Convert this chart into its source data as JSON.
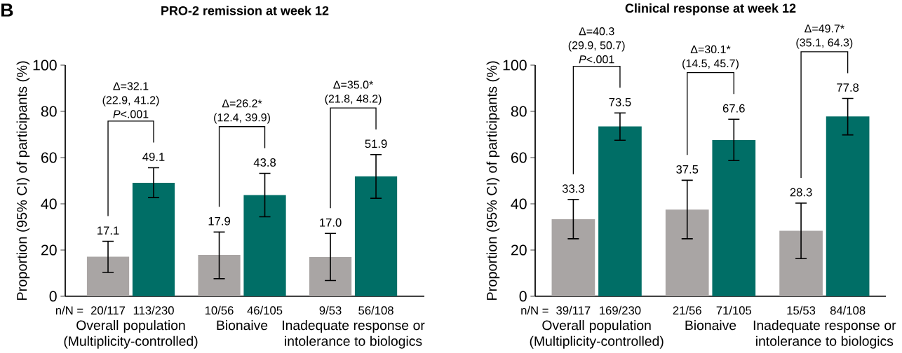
{
  "chart_data": [
    {
      "type": "bar",
      "title": "PRO-2 remission at week 12",
      "ylabel": "Proportion (95% CI) of participants (%)",
      "categories": [
        "Overall population (Multiplicity-controlled)",
        "Bionaive",
        "Inadequate response or intolerance to biologics"
      ],
      "series": [
        {
          "color": "#a9a5a4",
          "values": [
            17.1,
            17.9,
            17.0
          ],
          "value_labels": [
            "17.1",
            "17.9",
            "17.0"
          ],
          "errors": [
            [
              10.3,
              23.8
            ],
            [
              7.6,
              27.8
            ],
            [
              6.8,
              27.2
            ]
          ]
        },
        {
          "color": "#006e66",
          "values": [
            49.1,
            43.8,
            51.9
          ],
          "value_labels": [
            "49.1",
            "43.8",
            "51.9"
          ],
          "errors": [
            [
              42.7,
              55.6
            ],
            [
              34.4,
              53.2
            ],
            [
              42.4,
              61.3
            ]
          ]
        }
      ],
      "ylim": [
        0,
        100
      ],
      "yticks": [
        0,
        20,
        40,
        60,
        80,
        100
      ],
      "annotations": [
        "n/N =",
        "20/117",
        "113/230",
        "10/56",
        "46/105",
        "9/53",
        "56/108",
        "B",
        "Δ=32.1 (22.9, 41.2) *P*<.001",
        "Δ=26.2* (12.4, 39.9)",
        "Δ=35.0* (21.8, 48.2)"
      ]
    },
    {
      "type": "bar",
      "title": "Clinical response at week 12",
      "ylabel": "Proportion (95% CI) of participants (%)",
      "categories": [
        "Overall population (Multiplicity-controlled)",
        "Bionaive",
        "Inadequate response or intolerance to biologics"
      ],
      "series": [
        {
          "color": "#a9a5a4",
          "values": [
            33.3,
            37.5,
            28.3
          ],
          "value_labels": [
            "33.3",
            "37.5",
            "28.3"
          ],
          "errors": [
            [
              24.9,
              41.9
            ],
            [
              24.9,
              50.2
            ],
            [
              16.3,
              40.3
            ]
          ]
        },
        {
          "color": "#006e66",
          "values": [
            73.5,
            67.6,
            77.8
          ],
          "value_labels": [
            "73.5",
            "67.6",
            "77.8"
          ],
          "errors": [
            [
              67.5,
              79.3
            ],
            [
              58.7,
              76.6
            ],
            [
              69.8,
              85.6
            ]
          ]
        }
      ],
      "ylim": [
        0,
        100
      ],
      "yticks": [
        0,
        20,
        40,
        60,
        80,
        100
      ],
      "annotations": [
        "n/N =",
        "39/117",
        "169/230",
        "21/56",
        "71/105",
        "15/53",
        "84/108",
        "Δ=40.3 (29.9, 50.7) *P*<.001",
        "Δ=30.1* (14.5, 45.7)",
        "Δ=49.7* (35.1, 64.3)"
      ]
    }
  ]
}
